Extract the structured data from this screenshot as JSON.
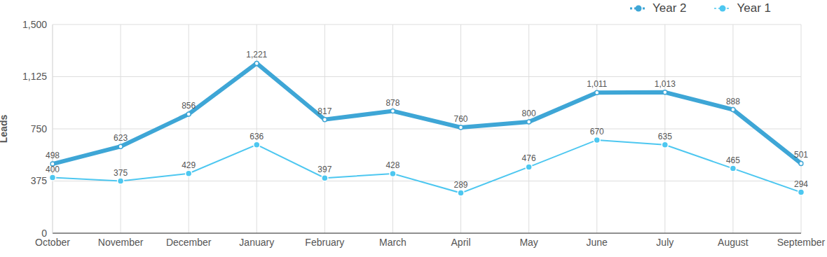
{
  "chart_data": {
    "type": "line",
    "y_label": "Leads",
    "categories": [
      "October",
      "November",
      "December",
      "January",
      "February",
      "March",
      "April",
      "May",
      "June",
      "July",
      "August",
      "September"
    ],
    "series": [
      {
        "name": "Year 2",
        "color": "#3ea6d6",
        "marker": "circle",
        "values": [
          498,
          623,
          856,
          1221,
          817,
          878,
          760,
          800,
          1011,
          1013,
          888,
          501
        ],
        "value_labels": [
          "498",
          "623",
          "856",
          "1,221",
          "817",
          "878",
          "760",
          "800",
          "1,011",
          "1,013",
          "888",
          "501"
        ]
      },
      {
        "name": "Year 1",
        "color": "#4dc7f0",
        "marker": "circle",
        "values": [
          400,
          375,
          429,
          636,
          397,
          428,
          289,
          476,
          670,
          635,
          465,
          294
        ]
      }
    ],
    "ylim": [
      0,
      1500
    ],
    "yticks": [
      0,
      375,
      750,
      {
        "value": 1125,
        "label": "1,125"
      },
      {
        "value": 1500,
        "label": "1,500"
      }
    ],
    "grid": true,
    "data_labels": true,
    "legend": "top-right"
  }
}
